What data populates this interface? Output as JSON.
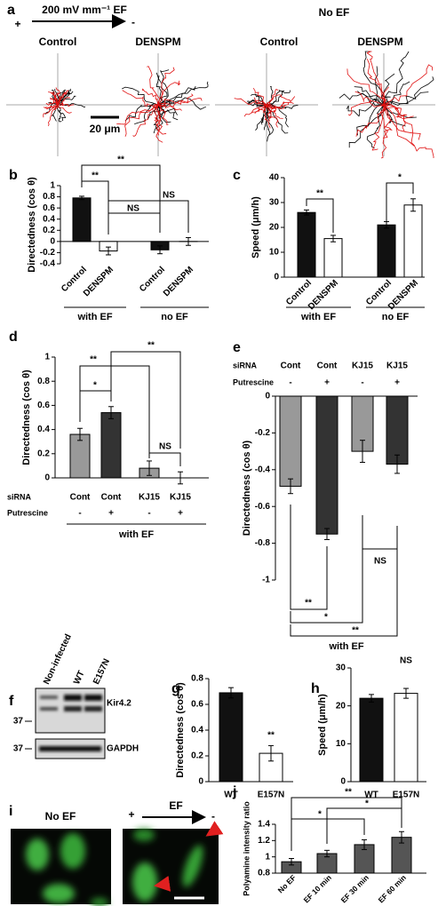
{
  "figure_a": {
    "label": "a",
    "plus": "+",
    "field": "200 mV mm⁻¹ EF",
    "minus": "-",
    "no_ef": "No EF",
    "titles": [
      "Control",
      "DENSPM",
      "Control",
      "DENSPM"
    ],
    "scale_bar": "20 μm"
  },
  "chart_data": [
    {
      "panel": "b",
      "type": "bar",
      "ylabel": "Directedness (cos θ)",
      "categories": [
        "Control",
        "DENSPM",
        "Control",
        "DENSPM"
      ],
      "groups": [
        "with EF",
        "no EF"
      ],
      "values": [
        0.78,
        -0.17,
        -0.15,
        0.0
      ],
      "errors": [
        0.03,
        0.07,
        0.07,
        0.07
      ],
      "colors": [
        "#111111",
        "#ffffff",
        "#111111",
        "#ffffff"
      ],
      "ylim": [
        -0.4,
        1
      ],
      "yticks": [
        -0.4,
        -0.2,
        0,
        0.2,
        0.4,
        0.6,
        0.8,
        1
      ],
      "annotations": [
        "**",
        "**",
        "NS",
        "NS"
      ]
    },
    {
      "panel": "c",
      "type": "bar",
      "ylabel": "Speed (μm/h)",
      "categories": [
        "Control",
        "DENSPM",
        "Control",
        "DENSPM"
      ],
      "groups": [
        "with EF",
        "no EF"
      ],
      "values": [
        26,
        15.5,
        21,
        29
      ],
      "errors": [
        1,
        1.3,
        1.3,
        2.5
      ],
      "colors": [
        "#111111",
        "#ffffff",
        "#111111",
        "#ffffff"
      ],
      "ylim": [
        0,
        40
      ],
      "yticks": [
        0,
        10,
        20,
        30,
        40
      ],
      "annotations": [
        "**",
        "*"
      ]
    },
    {
      "panel": "d",
      "type": "bar",
      "ylabel": "Directedness (cos θ)",
      "row_labels": [
        "siRNA",
        "Putrescine"
      ],
      "categories": [
        "Cont",
        "Cont",
        "KJ15",
        "KJ15"
      ],
      "putrescine": [
        "-",
        "+",
        "-",
        "+"
      ],
      "groups": [
        "with EF"
      ],
      "values": [
        0.36,
        0.54,
        0.08,
        0.0
      ],
      "errors": [
        0.05,
        0.05,
        0.06,
        0.05
      ],
      "colors": [
        "#999999",
        "#333333",
        "#999999",
        "#333333"
      ],
      "ylim": [
        0,
        1
      ],
      "yticks": [
        0,
        0.2,
        0.4,
        0.6,
        0.8,
        1
      ],
      "annotations": [
        "*",
        "**",
        "**",
        "NS"
      ]
    },
    {
      "panel": "e",
      "type": "bar",
      "ylabel": "Directedness (cos θ)",
      "row_labels": [
        "siRNA",
        "Putrescine"
      ],
      "categories": [
        "Cont",
        "Cont",
        "KJ15",
        "KJ15"
      ],
      "putrescine": [
        "-",
        "+",
        "-",
        "+"
      ],
      "groups": [
        "with EF"
      ],
      "values": [
        -0.49,
        -0.75,
        -0.3,
        -0.37
      ],
      "errors": [
        0.04,
        0.03,
        0.06,
        0.05
      ],
      "colors": [
        "#999999",
        "#333333",
        "#999999",
        "#333333"
      ],
      "ylim": [
        -1,
        0
      ],
      "yticks": [
        -1,
        -0.8,
        -0.6,
        -0.4,
        -0.2,
        0
      ],
      "annotations": [
        "**",
        "*",
        "**",
        "NS"
      ]
    },
    {
      "panel": "g",
      "type": "bar",
      "ylabel": "Directedness (cos θ)",
      "categories": [
        "WT",
        "E157N"
      ],
      "values": [
        0.69,
        0.22
      ],
      "errors": [
        0.04,
        0.06
      ],
      "colors": [
        "#111111",
        "#ffffff"
      ],
      "ylim": [
        0,
        0.8
      ],
      "yticks": [
        0,
        0.2,
        0.4,
        0.6,
        0.8
      ],
      "annotations": [
        "**"
      ]
    },
    {
      "panel": "h",
      "type": "bar",
      "ylabel": "Speed (μm/h)",
      "categories": [
        "WT",
        "E157N"
      ],
      "values": [
        22,
        23.3
      ],
      "errors": [
        1,
        1.3
      ],
      "colors": [
        "#111111",
        "#ffffff"
      ],
      "ylim": [
        0,
        30
      ],
      "yticks": [
        0,
        10,
        20,
        30
      ],
      "annotations": [
        "NS"
      ]
    },
    {
      "panel": "j",
      "type": "bar",
      "ylabel": "Polyamine intensity ratio",
      "categories": [
        "No EF",
        "EF 10 min",
        "EF 30 min",
        "EF 60 min"
      ],
      "values": [
        0.94,
        1.04,
        1.15,
        1.24
      ],
      "errors": [
        0.04,
        0.04,
        0.06,
        0.07
      ],
      "colors": [
        "#555555",
        "#555555",
        "#555555",
        "#555555"
      ],
      "ylim": [
        0.8,
        1.4
      ],
      "yticks": [
        0.8,
        1,
        1.2,
        1.4
      ],
      "annotations": [
        "**",
        "*",
        "*"
      ]
    }
  ],
  "figure_f": {
    "label": "f",
    "lanes": [
      "Non-infected",
      "WT",
      "E157N"
    ],
    "bands": [
      "Kir4.2",
      "GAPDH"
    ],
    "markers": [
      "37",
      "37"
    ]
  },
  "figure_i": {
    "label": "i",
    "title": "No EF",
    "plus": "+",
    "field": "EF",
    "minus": "-"
  }
}
